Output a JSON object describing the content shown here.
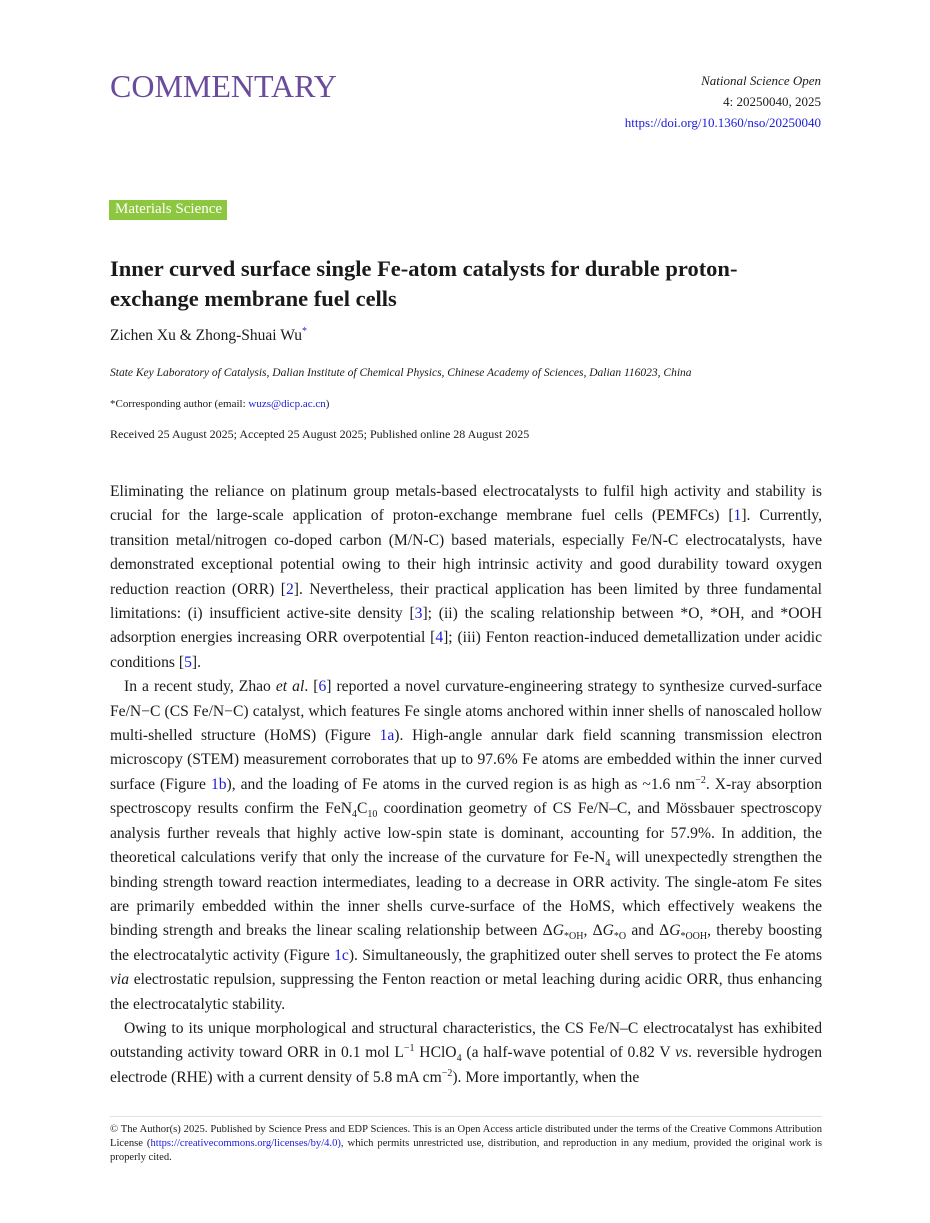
{
  "header": {
    "section": "COMMENTARY",
    "journal": "National Science Open",
    "volume": "4: 20250040, 2025",
    "doi": "https://doi.org/10.1360/nso/20250040"
  },
  "badge": "Materials Science",
  "title": "Inner curved surface single Fe-atom catalysts for durable proton-exchange membrane fuel cells",
  "authors": "Zichen Xu & Zhong-Shuai Wu",
  "author_mark": "*",
  "affiliation": "State Key Laboratory of Catalysis, Dalian Institute of Chemical Physics, Chinese Academy of Sciences, Dalian 116023, China",
  "corresponding": {
    "prefix": "*Corresponding author (email: ",
    "email": "wuzs@dicp.ac.cn",
    "suffix": ")"
  },
  "dates": "Received 25 August 2025; Accepted 25 August 2025; Published online 28 August 2025",
  "paragraphs": [
    [
      {
        "t": "Eliminating the reliance on platinum group metals-based electrocatalysts to fulfil high activity and stability is crucial for the large-scale application of proton-exchange membrane fuel cells (PEMFCs) ["
      },
      {
        "a": "1"
      },
      {
        "t": "]. Currently, transition metal/nitrogen co-doped carbon (M/N-C) based materials, especially Fe/N-C electrocatalysts, have demonstrated exceptional potential owing to their high intrinsic activity and good durability toward oxygen reduction reaction (ORR) ["
      },
      {
        "a": "2"
      },
      {
        "t": "]. Nevertheless, their practical application has been limited by three fundamental limitations: (i) insufficient active-site density ["
      },
      {
        "a": "3"
      },
      {
        "t": "]; (ii) the scaling relationship between *O, *OH, and *OOH adsorption energies increasing ORR overpotential ["
      },
      {
        "a": "4"
      },
      {
        "t": "]; (iii) Fenton reaction-induced demetallization under acidic conditions ["
      },
      {
        "a": "5"
      },
      {
        "t": "]."
      }
    ],
    [
      {
        "t": "In a recent study, Zhao "
      },
      {
        "i": "et al"
      },
      {
        "t": ". ["
      },
      {
        "a": "6"
      },
      {
        "t": "] reported a novel curvature-engineering strategy to synthesize curved-surface Fe/N−C (CS Fe/N−C) catalyst, which features Fe single atoms anchored within inner shells of nanoscaled hollow multi-shelled structure (HoMS)  (Figure "
      },
      {
        "a": "1a"
      },
      {
        "t": "). High-angle annular dark field scanning transmission electron microscopy (STEM) measurement corroborates that up to 97.6% Fe atoms are embedded within the inner curved surface (Figure "
      },
      {
        "a": "1b"
      },
      {
        "t": "), and the loading of Fe atoms in the curved region is as high as ~1.6 nm"
      },
      {
        "sup": "−2"
      },
      {
        "t": ". X-ray absorption spectroscopy results confirm the FeN"
      },
      {
        "sub": "4"
      },
      {
        "t": "C"
      },
      {
        "sub": "10"
      },
      {
        "t": " coordination geometry of CS Fe/N–C, and Mössbauer spectroscopy analysis further reveals that highly active low-spin state is dominant, accounting for 57.9%. In addition, the theoretical calculations verify that only the increase of the curvature for Fe-N"
      },
      {
        "sub": "4"
      },
      {
        "t": " will unexpectedly strengthen the binding strength toward reaction intermediates, leading to a decrease in ORR activity. The single-atom Fe sites are primarily embedded within the inner shells curve-surface of the HoMS, which effectively weakens the binding strength and breaks the linear scaling relationship between Δ"
      },
      {
        "i": "G"
      },
      {
        "sub": "*OH"
      },
      {
        "t": ", Δ"
      },
      {
        "i": "G"
      },
      {
        "sub": "*O"
      },
      {
        "t": " and Δ"
      },
      {
        "i": "G"
      },
      {
        "sub": "*OOH"
      },
      {
        "t": ", thereby boosting the electrocatalytic activity (Figure "
      },
      {
        "a": "1c"
      },
      {
        "t": "). Simultaneously, the graphitized outer shell serves to protect the Fe atoms "
      },
      {
        "i": "via"
      },
      {
        "t": " electrostatic repulsion, suppressing the Fenton reaction or metal leaching during acidic ORR, thus enhancing the electrocatalytic stability."
      }
    ],
    [
      {
        "t": "Owing to its unique morphological and structural characteristics, the CS Fe/N–C electrocatalyst has exhibited outstanding activity toward ORR in 0.1 mol L"
      },
      {
        "sup": "−1"
      },
      {
        "t": " HClO"
      },
      {
        "sub": "4"
      },
      {
        "t": " (a half-wave potential of 0.82 V "
      },
      {
        "i": "vs"
      },
      {
        "t": ". reversible hydrogen electrode (RHE) with a current density of 5.8  mA cm"
      },
      {
        "sup": "−2"
      },
      {
        "t": "). More importantly, when the"
      }
    ]
  ],
  "footer": {
    "pre": "© The Author(s) 2025. Published by Science Press and EDP Sciences. This is an Open Access article distributed under the terms of the Creative Commons Attribution License (",
    "link": "https://creativecommons.org/licenses/by/4.0)",
    "post": ", which permits unrestricted use, distribution, and reproduction in any medium, provided the original work is properly cited."
  },
  "colors": {
    "section": "#6a4b9c",
    "badge": "#8dc63f",
    "link": "#1a1adb"
  }
}
